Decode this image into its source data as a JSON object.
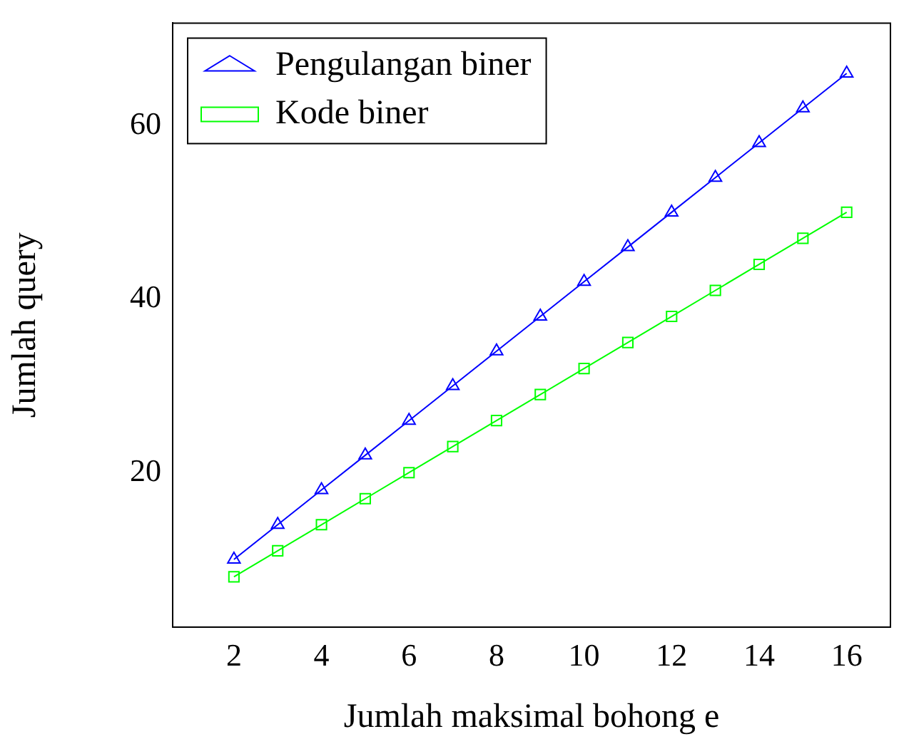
{
  "chart_data": {
    "type": "line",
    "xlabel": "Jumlah maksimal bohong e",
    "ylabel": "Jumlah query",
    "x": [
      2,
      3,
      4,
      5,
      6,
      7,
      8,
      9,
      10,
      11,
      12,
      13,
      14,
      15,
      16
    ],
    "series": [
      {
        "name": "Pengulangan biner",
        "color": "#0000ff",
        "marker": "triangle",
        "values": [
          10,
          14,
          18,
          22,
          26,
          30,
          34,
          38,
          42,
          46,
          50,
          54,
          58,
          62,
          66
        ]
      },
      {
        "name": "Kode biner",
        "color": "#00ff00",
        "marker": "square",
        "values": [
          8,
          11,
          14,
          17,
          20,
          23,
          26,
          29,
          32,
          35,
          38,
          41,
          44,
          47,
          50
        ]
      }
    ],
    "xlim": [
      0.6,
      17.0
    ],
    "ylim": [
      2.2,
      71.8
    ],
    "xticks": [
      2,
      4,
      6,
      8,
      10,
      12,
      14,
      16
    ],
    "yticks": [
      20,
      40,
      60
    ],
    "grid": false,
    "legend": "top left",
    "line_style": "solid"
  }
}
